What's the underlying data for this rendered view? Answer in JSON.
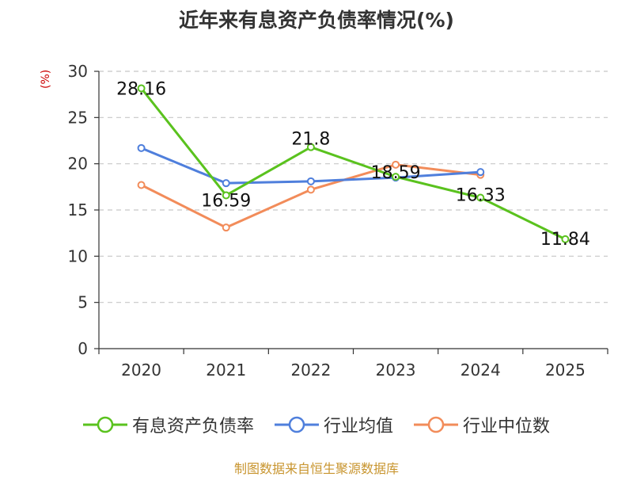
{
  "chart_data": {
    "type": "line",
    "title": "近年来有息资产负债率情况(%)",
    "ylabel": "(%)",
    "categories": [
      "2020",
      "2021",
      "2022",
      "2023",
      "2024",
      "2025"
    ],
    "ylim": [
      0,
      30
    ],
    "yticks": [
      0,
      5,
      10,
      15,
      20,
      25,
      30
    ],
    "grid": true,
    "legend_position": "bottom",
    "series": [
      {
        "name": "有息资产负债率",
        "color": "#5ac21e",
        "values": [
          28.16,
          16.59,
          21.8,
          18.59,
          16.33,
          11.84
        ],
        "data_labels": [
          "28.16",
          "16.59",
          "21.8",
          "18.59",
          "16.33",
          "11.84"
        ]
      },
      {
        "name": "行业均值",
        "color": "#4f7fdc",
        "values": [
          21.7,
          17.9,
          18.1,
          18.5,
          19.1,
          null
        ]
      },
      {
        "name": "行业中位数",
        "color": "#f28c5a",
        "values": [
          17.7,
          13.1,
          17.2,
          19.9,
          18.8,
          null
        ]
      }
    ]
  },
  "footer": "制图数据来自恒生聚源数据库"
}
